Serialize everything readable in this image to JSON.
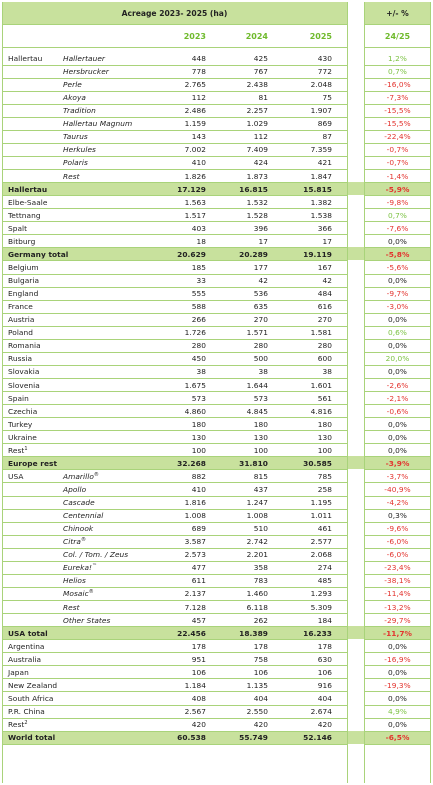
{
  "header": {
    "title": "Acreage 2023- 2025 (ha)",
    "change_label": "+/-   %",
    "years": [
      "2023",
      "2024",
      "2025"
    ],
    "change_years": "24/25"
  },
  "colors": {
    "green_line": "#a9d37a",
    "band": "#c8e19d",
    "accent": "#6fba2c",
    "negative": "#e3342f",
    "positive": "#7cc243"
  },
  "rows": [
    {
      "region": "Hallertau",
      "variety": "Hallertauer",
      "v2023": "448",
      "v2024": "425",
      "v2025": "430",
      "change": "1,2%",
      "sign": "pos"
    },
    {
      "region": "",
      "variety": "Hersbrucker",
      "v2023": "778",
      "v2024": "767",
      "v2025": "772",
      "change": "0,7%",
      "sign": "pos"
    },
    {
      "region": "",
      "variety": "Perle",
      "v2023": "2.765",
      "v2024": "2.438",
      "v2025": "2.048",
      "change": "-16,0%",
      "sign": "neg"
    },
    {
      "region": "",
      "variety": "Akoya",
      "v2023": "112",
      "v2024": "81",
      "v2025": "75",
      "change": "-7,3%",
      "sign": "neg"
    },
    {
      "region": "",
      "variety": "Tradition",
      "v2023": "2.486",
      "v2024": "2.257",
      "v2025": "1.907",
      "change": "-15,5%",
      "sign": "neg"
    },
    {
      "region": "",
      "variety": "Hallertau Magnum",
      "v2023": "1.159",
      "v2024": "1.029",
      "v2025": "869",
      "change": "-15,5%",
      "sign": "neg"
    },
    {
      "region": "",
      "variety": "Taurus",
      "v2023": "143",
      "v2024": "112",
      "v2025": "87",
      "change": "-22,4%",
      "sign": "neg"
    },
    {
      "region": "",
      "variety": "Herkules",
      "v2023": "7.002",
      "v2024": "7.409",
      "v2025": "7.359",
      "change": "-0,7%",
      "sign": "neg"
    },
    {
      "region": "",
      "variety": "Polaris",
      "v2023": "410",
      "v2024": "424",
      "v2025": "421",
      "change": "-0,7%",
      "sign": "neg"
    },
    {
      "region": "",
      "variety": "Rest",
      "v2023": "1.826",
      "v2024": "1.873",
      "v2025": "1.847",
      "change": "-1,4%",
      "sign": "neg"
    },
    {
      "region": "Hallertau",
      "variety": "",
      "v2023": "17.129",
      "v2024": "16.815",
      "v2025": "15.815",
      "change": "-5,9%",
      "sign": "neg",
      "total": true
    },
    {
      "region": "Elbe-Saale",
      "variety": "",
      "v2023": "1.563",
      "v2024": "1.532",
      "v2025": "1.382",
      "change": "-9,8%",
      "sign": "neg"
    },
    {
      "region": "Tettnang",
      "variety": "",
      "v2023": "1.517",
      "v2024": "1.528",
      "v2025": "1.538",
      "change": "0,7%",
      "sign": "pos"
    },
    {
      "region": "Spalt",
      "variety": "",
      "v2023": "403",
      "v2024": "396",
      "v2025": "366",
      "change": "-7,6%",
      "sign": "neg"
    },
    {
      "region": "Bitburg",
      "variety": "",
      "v2023": "18",
      "v2024": "17",
      "v2025": "17",
      "change": "0,0%",
      "sign": "zero"
    },
    {
      "region": "Germany total",
      "variety": "",
      "v2023": "20.629",
      "v2024": "20.289",
      "v2025": "19.119",
      "change": "-5,8%",
      "sign": "neg",
      "total": true
    },
    {
      "region": "Belgium",
      "variety": "",
      "v2023": "185",
      "v2024": "177",
      "v2025": "167",
      "change": "-5,6%",
      "sign": "neg"
    },
    {
      "region": "Bulgaria",
      "variety": "",
      "v2023": "33",
      "v2024": "42",
      "v2025": "42",
      "change": "0,0%",
      "sign": "zero"
    },
    {
      "region": "England",
      "variety": "",
      "v2023": "555",
      "v2024": "536",
      "v2025": "484",
      "change": "-9,7%",
      "sign": "neg"
    },
    {
      "region": "France",
      "variety": "",
      "v2023": "588",
      "v2024": "635",
      "v2025": "616",
      "change": "-3,0%",
      "sign": "neg"
    },
    {
      "region": "Austria",
      "variety": "",
      "v2023": "266",
      "v2024": "270",
      "v2025": "270",
      "change": "0,0%",
      "sign": "zero"
    },
    {
      "region": "Poland",
      "variety": "",
      "v2023": "1.726",
      "v2024": "1.571",
      "v2025": "1.581",
      "change": "0,6%",
      "sign": "pos"
    },
    {
      "region": "Romania",
      "variety": "",
      "v2023": "280",
      "v2024": "280",
      "v2025": "280",
      "change": "0,0%",
      "sign": "zero"
    },
    {
      "region": "Russia",
      "variety": "",
      "v2023": "450",
      "v2024": "500",
      "v2025": "600",
      "change": "20,0%",
      "sign": "pos"
    },
    {
      "region": "Slovakia",
      "variety": "",
      "v2023": "38",
      "v2024": "38",
      "v2025": "38",
      "change": "0,0%",
      "sign": "zero"
    },
    {
      "region": "Slovenia",
      "variety": "",
      "v2023": "1.675",
      "v2024": "1.644",
      "v2025": "1.601",
      "change": "-2,6%",
      "sign": "neg"
    },
    {
      "region": "Spain",
      "variety": "",
      "v2023": "573",
      "v2024": "573",
      "v2025": "561",
      "change": "-2,1%",
      "sign": "neg"
    },
    {
      "region": "Czechia",
      "variety": "",
      "v2023": "4.860",
      "v2024": "4.845",
      "v2025": "4.816",
      "change": "-0,6%",
      "sign": "neg"
    },
    {
      "region": "Turkey",
      "variety": "",
      "v2023": "180",
      "v2024": "180",
      "v2025": "180",
      "change": "0,0%",
      "sign": "zero"
    },
    {
      "region": "Ukraine",
      "variety": "",
      "v2023": "130",
      "v2024": "130",
      "v2025": "130",
      "change": "0,0%",
      "sign": "zero"
    },
    {
      "region": "Rest",
      "sup": "1",
      "variety": "",
      "v2023": "100",
      "v2024": "100",
      "v2025": "100",
      "change": "0,0%",
      "sign": "zero"
    },
    {
      "region": "Europe rest",
      "variety": "",
      "v2023": "32.268",
      "v2024": "31.810",
      "v2025": "30.585",
      "change": "-3,9%",
      "sign": "neg",
      "total": true
    },
    {
      "region": "USA",
      "variety": "Amarillo",
      "vsup": "®",
      "v2023": "882",
      "v2024": "815",
      "v2025": "785",
      "change": "-3,7%",
      "sign": "neg"
    },
    {
      "region": "",
      "variety": "Apollo",
      "v2023": "410",
      "v2024": "437",
      "v2025": "258",
      "change": "-40,9%",
      "sign": "neg"
    },
    {
      "region": "",
      "variety": "Cascade",
      "v2023": "1.816",
      "v2024": "1.247",
      "v2025": "1.195",
      "change": "-4,2%",
      "sign": "neg"
    },
    {
      "region": "",
      "variety": "Centennial",
      "v2023": "1.008",
      "v2024": "1.008",
      "v2025": "1.011",
      "change": "0,3%",
      "sign": "zero"
    },
    {
      "region": "",
      "variety": "Chinook",
      "v2023": "689",
      "v2024": "510",
      "v2025": "461",
      "change": "-9,6%",
      "sign": "neg"
    },
    {
      "region": "",
      "variety": "Citra",
      "vsup": "®",
      "v2023": "3.587",
      "v2024": "2.742",
      "v2025": "2.577",
      "change": "-6,0%",
      "sign": "neg"
    },
    {
      "region": "",
      "variety": "Col. / Tom. / Zeus",
      "v2023": "2.573",
      "v2024": "2.201",
      "v2025": "2.068",
      "change": "-6,0%",
      "sign": "neg"
    },
    {
      "region": "",
      "variety": "Eureka!",
      "vsup": "™",
      "v2023": "477",
      "v2024": "358",
      "v2025": "274",
      "change": "-23,4%",
      "sign": "neg"
    },
    {
      "region": "",
      "variety": "Helios",
      "v2023": "611",
      "v2024": "783",
      "v2025": "485",
      "change": "-38,1%",
      "sign": "neg"
    },
    {
      "region": "",
      "variety": "Mosaic",
      "vsup": "®",
      "v2023": "2.137",
      "v2024": "1.460",
      "v2025": "1.293",
      "change": "-11,4%",
      "sign": "neg"
    },
    {
      "region": "",
      "variety": "Rest",
      "v2023": "7.128",
      "v2024": "6.118",
      "v2025": "5.309",
      "change": "-13,2%",
      "sign": "neg"
    },
    {
      "region": "",
      "variety": "Other States",
      "v2023": "457",
      "v2024": "262",
      "v2025": "184",
      "change": "-29,7%",
      "sign": "neg"
    },
    {
      "region": "USA total",
      "variety": "",
      "v2023": "22.456",
      "v2024": "18.389",
      "v2025": "16.233",
      "change": "-11,7%",
      "sign": "neg",
      "total": true
    },
    {
      "region": "Argentina",
      "variety": "",
      "v2023": "178",
      "v2024": "178",
      "v2025": "178",
      "change": "0,0%",
      "sign": "zero"
    },
    {
      "region": "Australia",
      "variety": "",
      "v2023": "951",
      "v2024": "758",
      "v2025": "630",
      "change": "-16,9%",
      "sign": "neg"
    },
    {
      "region": "Japan",
      "variety": "",
      "v2023": "106",
      "v2024": "106",
      "v2025": "106",
      "change": "0,0%",
      "sign": "zero"
    },
    {
      "region": "New Zealand",
      "variety": "",
      "v2023": "1.184",
      "v2024": "1.135",
      "v2025": "916",
      "change": "-19,3%",
      "sign": "neg"
    },
    {
      "region": "South Africa",
      "variety": "",
      "v2023": "408",
      "v2024": "404",
      "v2025": "404",
      "change": "0,0%",
      "sign": "zero"
    },
    {
      "region": "P.R. China",
      "variety": "",
      "v2023": "2.567",
      "v2024": "2.550",
      "v2025": "2.674",
      "change": "4,9%",
      "sign": "pos"
    },
    {
      "region": "Rest",
      "sup": "2",
      "variety": "",
      "v2023": "420",
      "v2024": "420",
      "v2025": "420",
      "change": "0,0%",
      "sign": "zero"
    },
    {
      "region": "World total",
      "variety": "",
      "v2023": "60.538",
      "v2024": "55.749",
      "v2025": "52.146",
      "change": "-6,5%",
      "sign": "neg",
      "total": true
    }
  ]
}
